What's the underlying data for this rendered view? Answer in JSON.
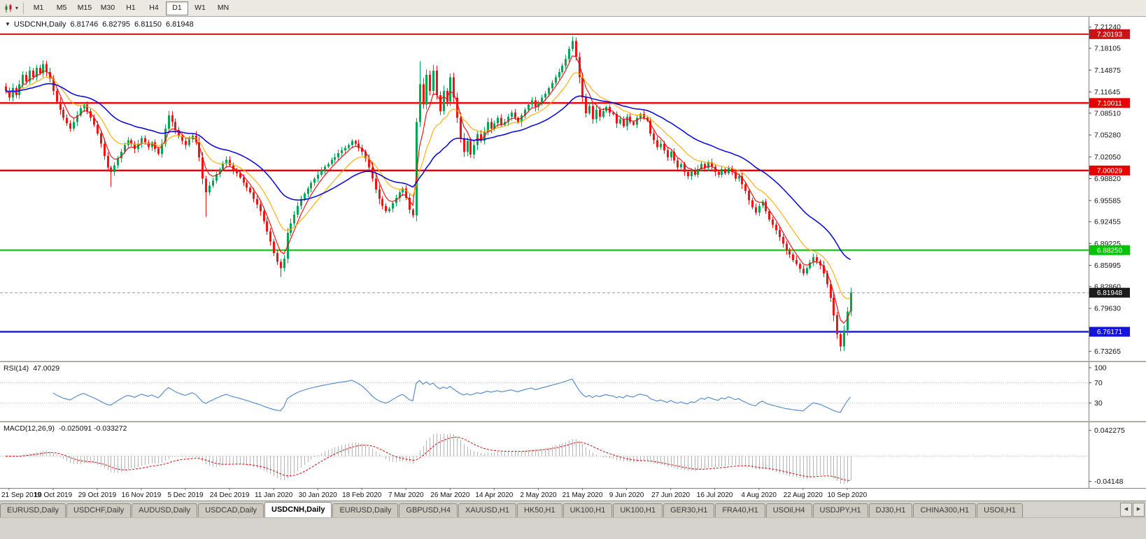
{
  "icons": {
    "dropdown": "▾",
    "chart_menu": "▼",
    "scroll_left": "◀",
    "scroll_right": "▶"
  },
  "toolbar": {
    "timeframes": [
      "M1",
      "M5",
      "M15",
      "M30",
      "H1",
      "H4",
      "D1",
      "W1",
      "MN"
    ],
    "active": "D1"
  },
  "chart": {
    "title": {
      "symbol_period": "USDCNH,Daily",
      "open": "6.81746",
      "high": "6.82795",
      "low": "6.81150",
      "close": "6.81948"
    },
    "price_scale_ticks": [
      "7.21240",
      "7.18105",
      "7.14875",
      "7.11645",
      "7.08510",
      "7.05280",
      "7.02050",
      "6.98820",
      "6.95585",
      "6.92455",
      "6.89225",
      "6.85995",
      "6.82860",
      "6.79630",
      "6.73265"
    ],
    "hlines": [
      {
        "value": 7.20193,
        "label": "7.20193",
        "color": "#c81414",
        "width": 2,
        "badge": true
      },
      {
        "value": 7.10011,
        "label": "7.10011",
        "color": "#e80000",
        "width": 2.4,
        "badge": true
      },
      {
        "value": 7.00029,
        "label": "7.00029",
        "color": "#e80000",
        "width": 2.4,
        "badge": true
      },
      {
        "value": 6.8825,
        "label": "6.88250",
        "color": "#00c400",
        "width": 2,
        "badge": true
      },
      {
        "value": 6.76171,
        "label": "6.76171",
        "color": "#1414d8",
        "width": 2.4,
        "badge": true
      }
    ],
    "current_price": {
      "value": 6.81948,
      "label": "6.81948",
      "badge_color": "#1a1a1a"
    }
  },
  "chart_data": {
    "type": "candlestick",
    "symbol": "USDCNH",
    "period": "Daily",
    "price_domain": [
      6.723,
      7.2235
    ],
    "first_open": 7.125,
    "closes": [
      7.118,
      7.108,
      7.122,
      7.112,
      7.128,
      7.142,
      7.132,
      7.148,
      7.138,
      7.152,
      7.144,
      7.158,
      7.146,
      7.136,
      7.118,
      7.102,
      7.09,
      7.078,
      7.07,
      7.062,
      7.072,
      7.082,
      7.092,
      7.098,
      7.088,
      7.078,
      7.068,
      7.055,
      7.04,
      7.022,
      7.005,
      6.998,
      7.008,
      7.018,
      7.028,
      7.038,
      7.045,
      7.04,
      7.032,
      7.04,
      7.048,
      7.042,
      7.035,
      7.042,
      7.032,
      7.025,
      7.04,
      7.062,
      7.082,
      7.072,
      7.06,
      7.052,
      7.044,
      7.038,
      7.046,
      7.052,
      7.042,
      7.02,
      6.988,
      6.968,
      6.978,
      6.985,
      6.995,
      7.002,
      7.01,
      7.016,
      7.008,
      7.0,
      6.996,
      6.99,
      6.982,
      6.975,
      6.968,
      6.958,
      6.95,
      6.94,
      6.925,
      6.91,
      6.895,
      6.878,
      6.865,
      6.856,
      6.87,
      6.908,
      6.922,
      6.935,
      6.948,
      6.958,
      6.966,
      6.974,
      6.982,
      6.988,
      6.994,
      7.0,
      7.006,
      7.01,
      7.016,
      7.02,
      7.026,
      7.03,
      7.034,
      7.038,
      7.044,
      7.04,
      7.034,
      7.028,
      7.018,
      7.005,
      6.988,
      6.972,
      6.958,
      6.948,
      6.94,
      6.944,
      6.952,
      6.96,
      6.968,
      6.974,
      6.96,
      6.942,
      6.934,
      7.072,
      7.128,
      7.098,
      7.142,
      7.118,
      7.148,
      7.112,
      7.088,
      7.118,
      7.102,
      7.138,
      7.108,
      7.078,
      7.048,
      7.028,
      7.044,
      7.024,
      7.038,
      7.054,
      7.044,
      7.058,
      7.072,
      7.062,
      7.07,
      7.078,
      7.068,
      7.072,
      7.08,
      7.086,
      7.078,
      7.072,
      7.082,
      7.09,
      7.098,
      7.104,
      7.094,
      7.1,
      7.108,
      7.114,
      7.122,
      7.13,
      7.138,
      7.146,
      7.155,
      7.165,
      7.18,
      7.192,
      7.168,
      7.138,
      7.108,
      7.085,
      7.096,
      7.076,
      7.09,
      7.08,
      7.088,
      7.094,
      7.086,
      7.084,
      7.07,
      7.076,
      7.066,
      7.08,
      7.072,
      7.068,
      7.078,
      7.084,
      7.078,
      7.074,
      7.055,
      7.045,
      7.035,
      7.04,
      7.03,
      7.02,
      7.028,
      7.015,
      7.005,
      7.01,
      6.998,
      6.992,
      7.0,
      6.994,
      7.002,
      7.01,
      7.004,
      7.012,
      7.006,
      6.998,
      6.994,
      7.002,
      6.996,
      7.004,
      6.998,
      6.988,
      6.992,
      6.98,
      6.97,
      6.956,
      6.946,
      6.938,
      6.948,
      6.954,
      6.94,
      6.928,
      6.92,
      6.912,
      6.902,
      6.892,
      6.882,
      6.876,
      6.868,
      6.862,
      6.855,
      6.848,
      6.856,
      6.864,
      6.872,
      6.866,
      6.86,
      6.848,
      6.832,
      6.812,
      6.786,
      6.758,
      6.74,
      6.764,
      6.792,
      6.8195
    ],
    "wick_overrides": {
      "31": {
        "low": 6.976
      },
      "59": {
        "low": 6.932
      },
      "81": {
        "low": 6.843
      },
      "122": {
        "high": 7.162
      },
      "167": {
        "high": 7.1985
      },
      "246": {
        "low": 6.7326
      }
    },
    "candle_colors": {
      "up": "#00a651",
      "down": "#f01414"
    },
    "ma": [
      {
        "period": 5,
        "color": "#ff0000",
        "width": 1.1
      },
      {
        "period": 13,
        "color": "#ffaa00",
        "width": 1.1
      },
      {
        "period": 34,
        "color": "#0000d8",
        "width": 1.5
      }
    ],
    "x_labels": [
      "21 Sep 2019",
      "10 Oct 2019",
      "29 Oct 2019",
      "16 Nov 2019",
      "5 Dec 2019",
      "24 Dec 2019",
      "11 Jan 2020",
      "30 Jan 2020",
      "18 Feb 2020",
      "7 Mar 2020",
      "26 Mar 2020",
      "14 Apr 2020",
      "2 May 2020",
      "21 May 2020",
      "9 Jun 2020",
      "27 Jun 2020",
      "16 Jul 2020",
      "4 Aug 2020",
      "22 Aug 2020",
      "10 Sep 2020"
    ],
    "x_label_indices": [
      1,
      14,
      27,
      40,
      53,
      66,
      79,
      92,
      105,
      118,
      131,
      144,
      157,
      170,
      183,
      196,
      209,
      222,
      235,
      248
    ],
    "rsi": {
      "label_name": "RSI(14)",
      "label_value": "47.0029",
      "period": 14,
      "color": "#4a86c8",
      "levels": [
        70,
        30
      ],
      "scale_labels": [
        "100",
        "70",
        "30"
      ],
      "domain": [
        0,
        100
      ]
    },
    "macd": {
      "label_name": "MACD(12,26,9)",
      "label_value": "-0.025091 -0.033272",
      "fast": 12,
      "slow": 26,
      "signal_period": 9,
      "hist_color": "#b4b4b4",
      "signal_color": "#e00000",
      "scale_top": "0.042275",
      "scale_bottom": "-0.04148",
      "domain": [
        -0.0455,
        0.0465
      ]
    }
  },
  "tabs": {
    "items": [
      "EURUSD,Daily",
      "USDCHF,Daily",
      "AUDUSD,Daily",
      "USDCAD,Daily",
      "USDCNH,Daily",
      "EURUSD,Daily",
      "GBPUSD,H4",
      "XAUUSD,H1",
      "HK50,H1",
      "UK100,H1",
      "UK100,H1",
      "GER30,H1",
      "FRA40,H1",
      "USOil,H4",
      "USDJPY,H1",
      "DJ30,H1",
      "CHINA300,H1",
      "USOil,H1"
    ],
    "active_index": 4
  }
}
